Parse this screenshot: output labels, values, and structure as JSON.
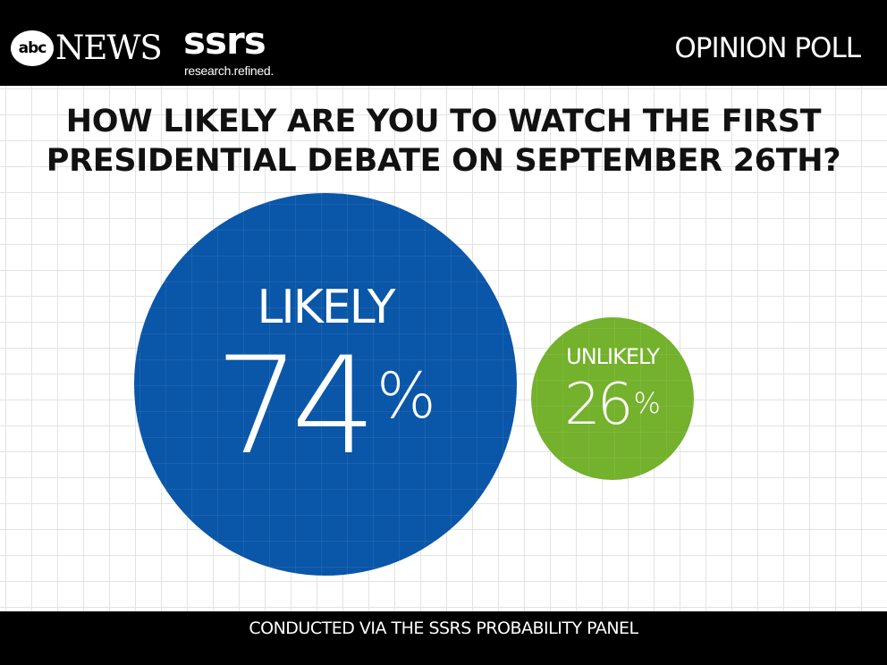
{
  "header": {
    "abc_logo": "abc",
    "network": "NEWS",
    "partner": "ssrs",
    "partner_tagline": "research.refined.",
    "section": "OPINION POLL"
  },
  "question": {
    "line1": "HOW LIKELY ARE YOU TO WATCH THE FIRST",
    "line2": "PRESIDENTIAL DEBATE ON SEPTEMBER 26TH?"
  },
  "footer": {
    "note": "CONDUCTED VIA THE SSRS PROBABILITY PANEL"
  },
  "colors": {
    "likely": "#0a56a8",
    "unlikely": "#74b12c",
    "bars": "#000000"
  },
  "chart_data": {
    "type": "bubble",
    "title": "HOW LIKELY ARE YOU TO WATCH THE FIRST PRESIDENTIAL DEBATE ON SEPTEMBER 26TH?",
    "unit": "%",
    "categories": [
      "LIKELY",
      "UNLIKELY"
    ],
    "values": [
      74,
      26
    ],
    "labels": [
      {
        "category": "LIKELY",
        "value": "74",
        "suffix": "%"
      },
      {
        "category": "UNLIKELY",
        "value": "26",
        "suffix": "%"
      }
    ],
    "grid": true,
    "legend": "none"
  }
}
